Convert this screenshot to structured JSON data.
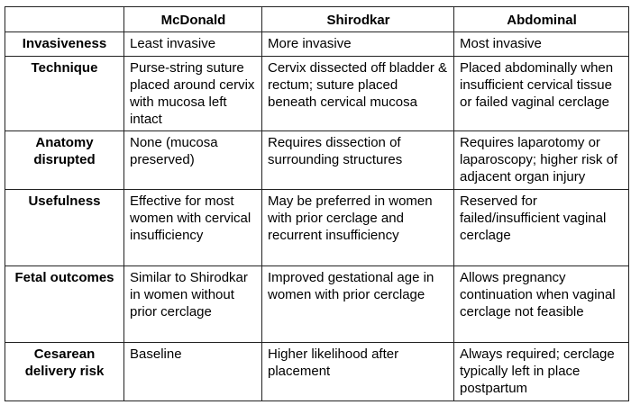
{
  "table": {
    "headers": [
      "",
      "McDonald",
      "Shirodkar",
      "Abdominal"
    ],
    "rows": [
      {
        "label": "Invasiveness",
        "cells": [
          "Least invasive",
          "More invasive",
          "Most invasive"
        ]
      },
      {
        "label": "Technique",
        "cells": [
          "Purse-string suture placed around cervix with mucosa left intact",
          "Cervix dissected off bladder & rectum; suture placed beneath cervical mucosa",
          "Placed abdominally when insufficient cervical tissue or failed vaginal cerclage"
        ]
      },
      {
        "label": "Anatomy disrupted",
        "cells": [
          "None (mucosa preserved)",
          "Requires dissection of surrounding structures",
          "Requires laparotomy or laparoscopy; higher risk of adjacent organ injury"
        ]
      },
      {
        "label": "Usefulness",
        "cells": [
          "Effective for most women with cervical insufficiency",
          "May be preferred in women with prior cerclage and recurrent insufficiency",
          "Reserved for failed/insufficient vaginal cerclage"
        ]
      },
      {
        "label": "Fetal outcomes",
        "cells": [
          "Similar to Shirodkar in women without prior cerclage",
          "Improved gestational age in women with prior cerclage",
          "Allows pregnancy continuation when vaginal cerclage not feasible"
        ]
      },
      {
        "label": "Cesarean delivery risk",
        "cells": [
          "Baseline",
          "Higher likelihood after placement",
          "Always required; cerclage typically left in place postpartum"
        ]
      }
    ]
  }
}
